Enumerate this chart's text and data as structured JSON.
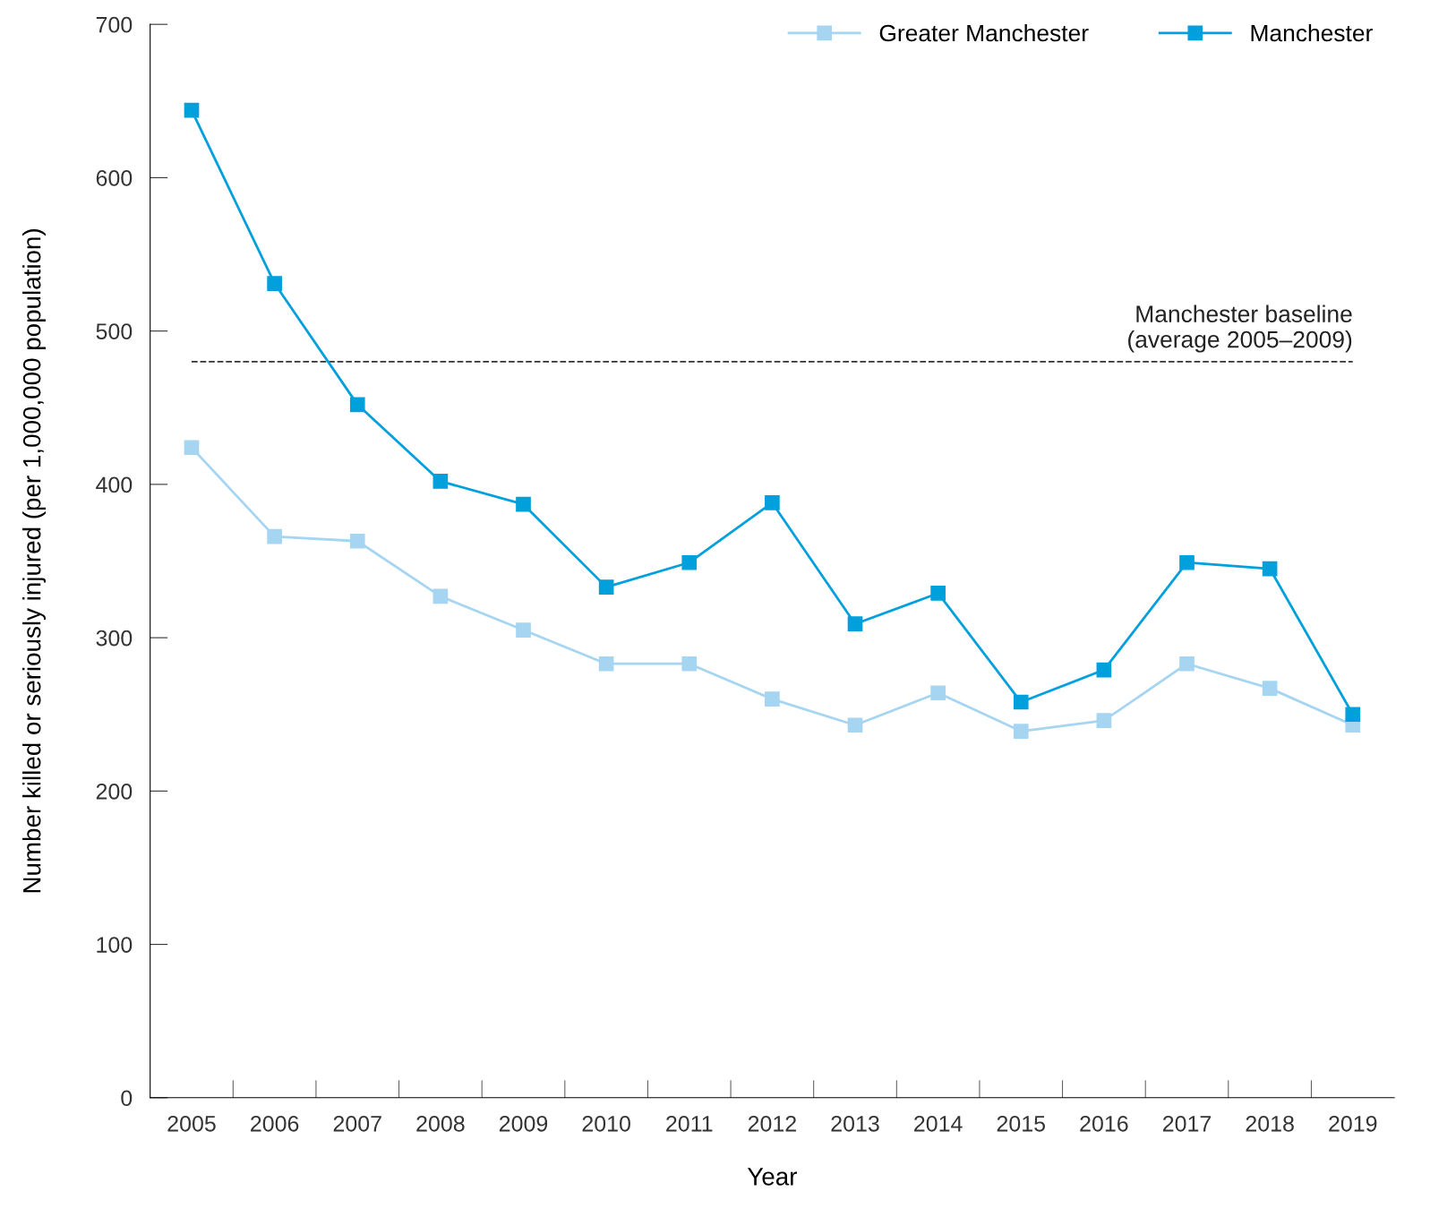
{
  "chart_data": {
    "type": "line",
    "xlabel": "Year",
    "ylabel": "Number killed or seriously injured (per 1,000,000 population)",
    "categories": [
      "2005",
      "2006",
      "2007",
      "2008",
      "2009",
      "2010",
      "2011",
      "2012",
      "2013",
      "2014",
      "2015",
      "2016",
      "2017",
      "2018",
      "2019"
    ],
    "series": [
      {
        "name": "Greater Manchester",
        "color": "#a6d5f2",
        "values": [
          424,
          366,
          363,
          327,
          305,
          283,
          283,
          260,
          243,
          264,
          239,
          246,
          283,
          267,
          243
        ]
      },
      {
        "name": "Manchester",
        "color": "#00a0dc",
        "values": [
          644,
          531,
          452,
          402,
          387,
          333,
          349,
          388,
          309,
          329,
          258,
          279,
          349,
          345,
          250
        ]
      }
    ],
    "ref_lines": [
      {
        "axis": "y",
        "value": 480,
        "label": "Manchester baseline\n(average 2005–2009)",
        "color": "#333333",
        "line_style": "dashed"
      }
    ],
    "ylim": [
      0,
      700
    ],
    "yticks": [
      0,
      100,
      200,
      300,
      400,
      500,
      600,
      700
    ],
    "marker": "square",
    "line_style": "solid",
    "grid": false,
    "legend": "top right"
  }
}
